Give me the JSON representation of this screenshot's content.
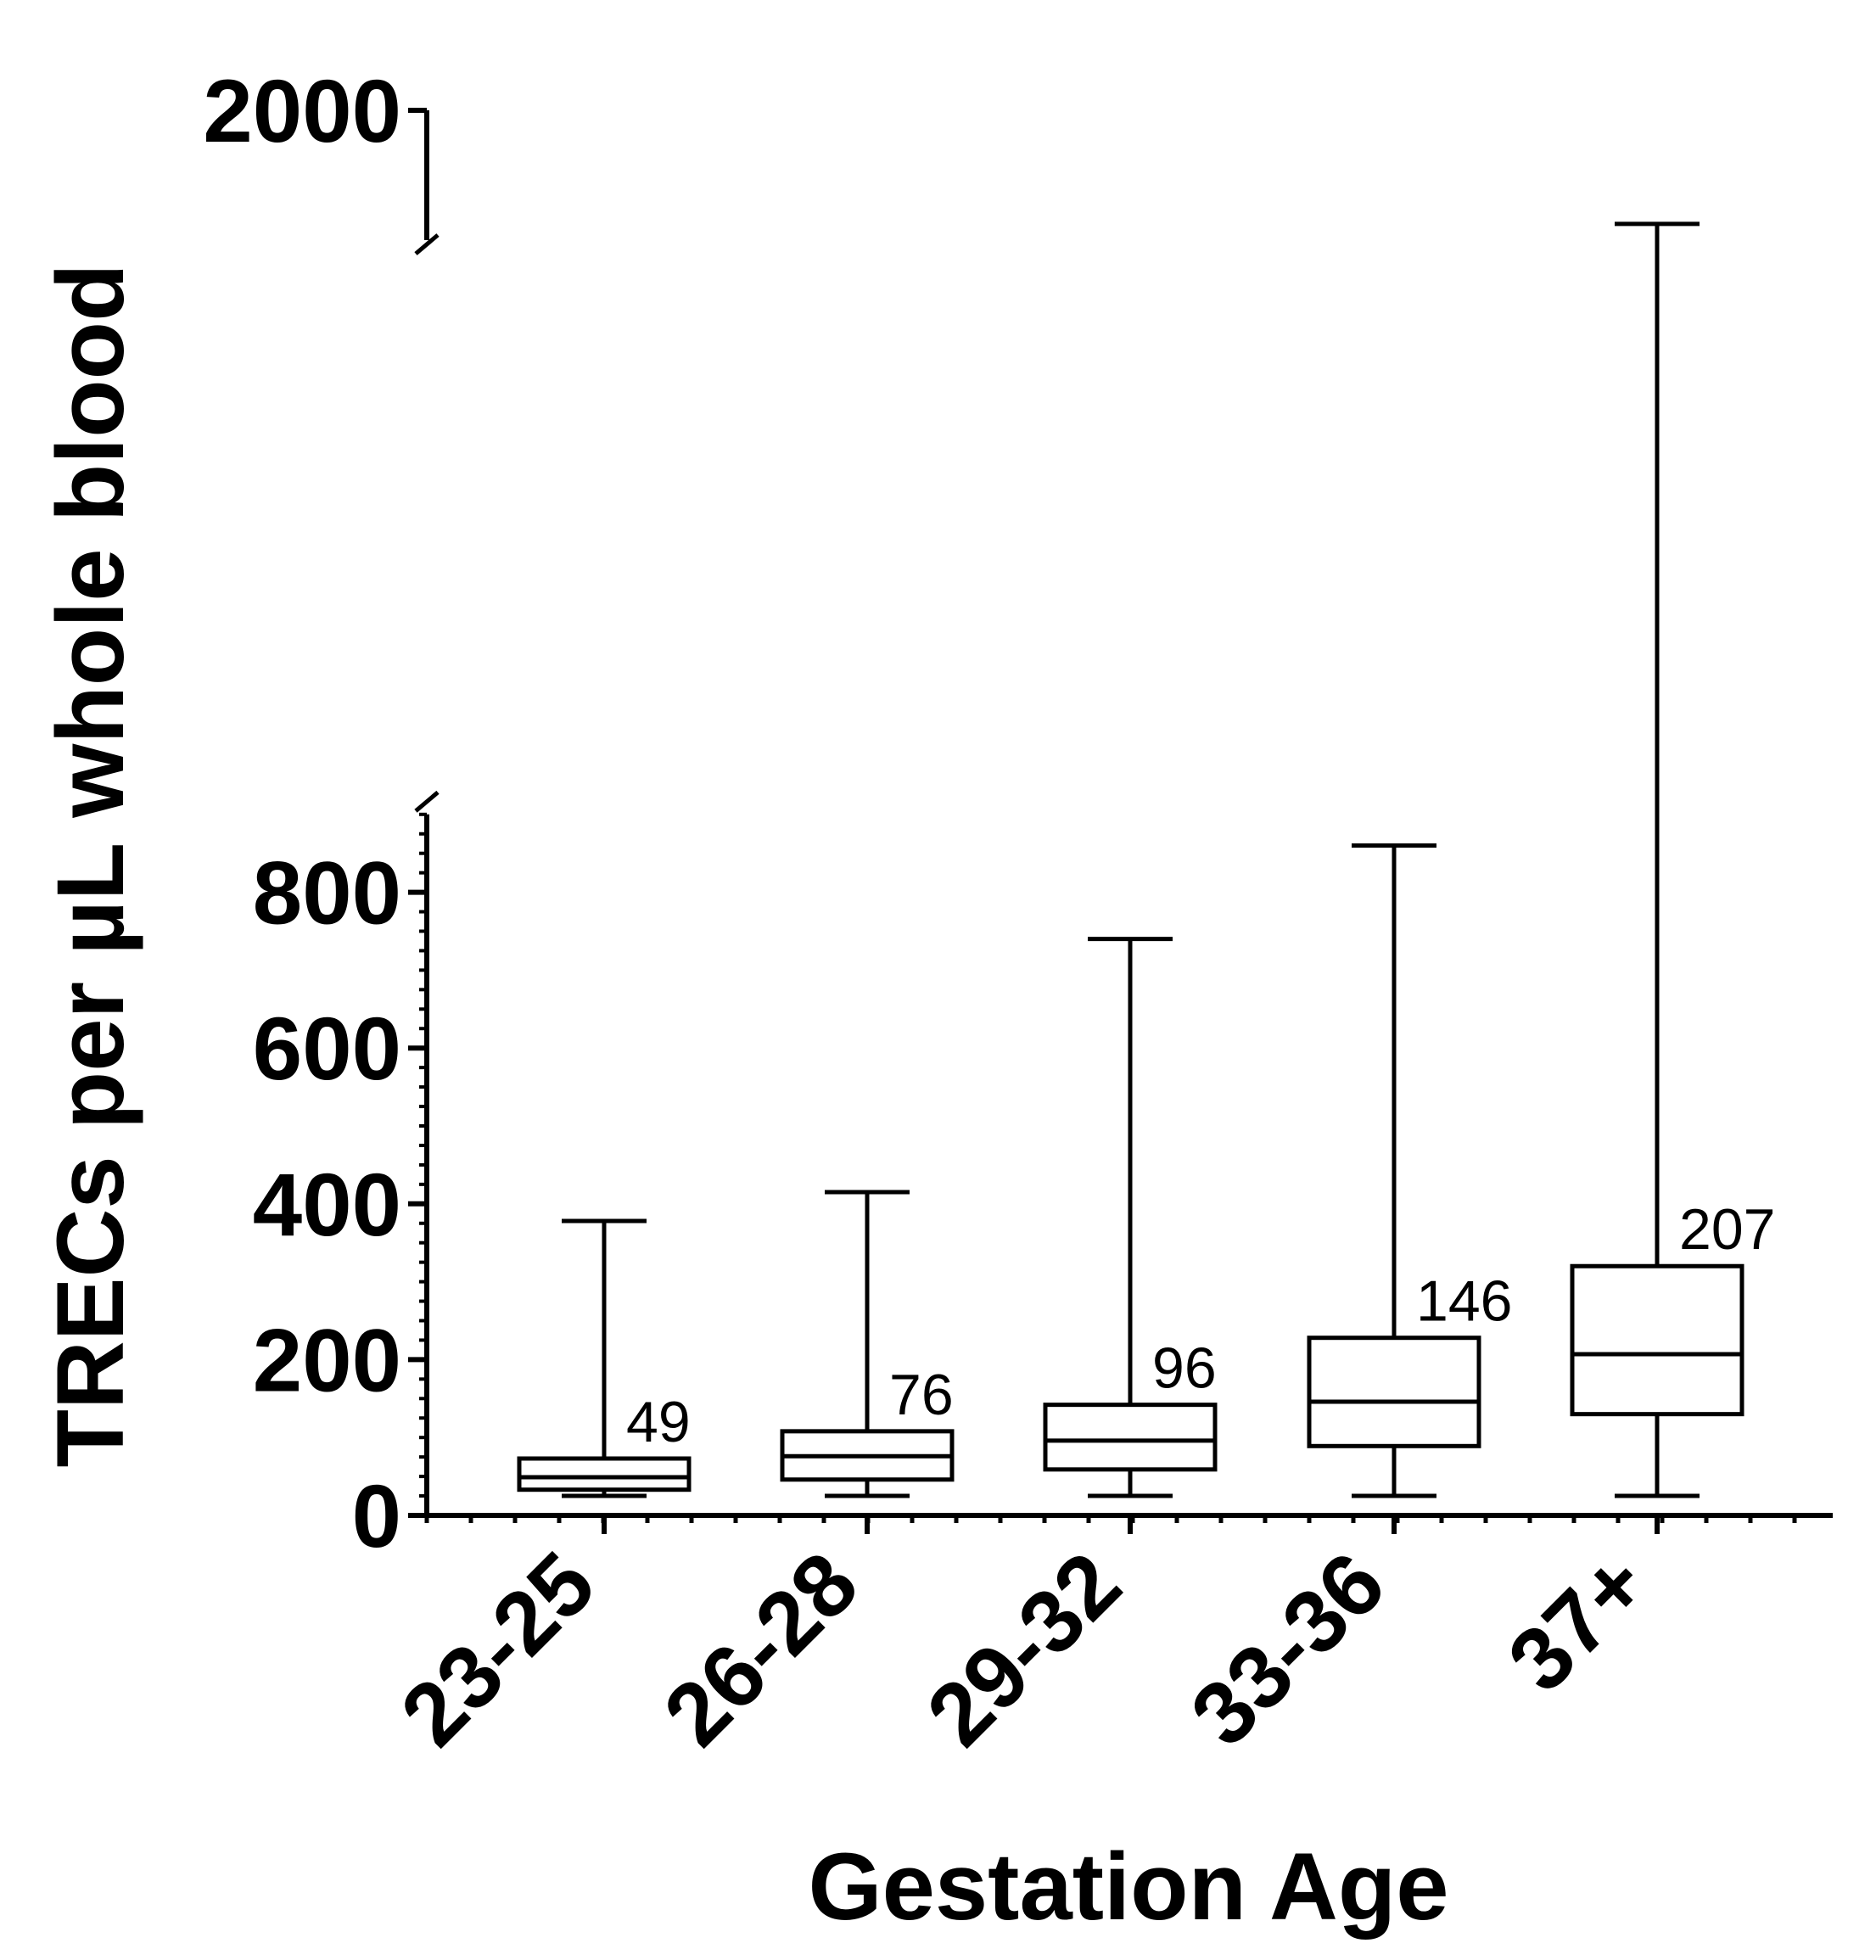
{
  "chart_data": {
    "type": "box",
    "xlabel": "Gestation Age",
    "ylabel": "TRECs per µL whole blood",
    "y_axis": {
      "lower_segment": {
        "range": [
          0,
          900
        ],
        "ticks": [
          0,
          200,
          400,
          600,
          800
        ],
        "minor_tick_step": 25
      },
      "upper_segment": {
        "range": [
          1800,
          2000
        ],
        "ticks": [
          2000
        ]
      },
      "broken": true
    },
    "categories": [
      "23-25",
      "26-28",
      "29-32",
      "33-36",
      "37+"
    ],
    "boxes": [
      {
        "category": "23-25",
        "min": 25,
        "q1": 33,
        "median": 49,
        "q3": 73,
        "max": 378,
        "label": "49"
      },
      {
        "category": "26-28",
        "min": 25,
        "q1": 46,
        "median": 76,
        "q3": 108,
        "max": 415,
        "label": "76"
      },
      {
        "category": "29-32",
        "min": 25,
        "q1": 59,
        "median": 96,
        "q3": 142,
        "max": 740,
        "label": "96"
      },
      {
        "category": "33-36",
        "min": 25,
        "q1": 89,
        "median": 146,
        "q3": 228,
        "max": 860,
        "label": "146"
      },
      {
        "category": "37+",
        "min": 25,
        "q1": 130,
        "median": 207,
        "q3": 320,
        "max": 1825,
        "label": "207"
      }
    ]
  }
}
